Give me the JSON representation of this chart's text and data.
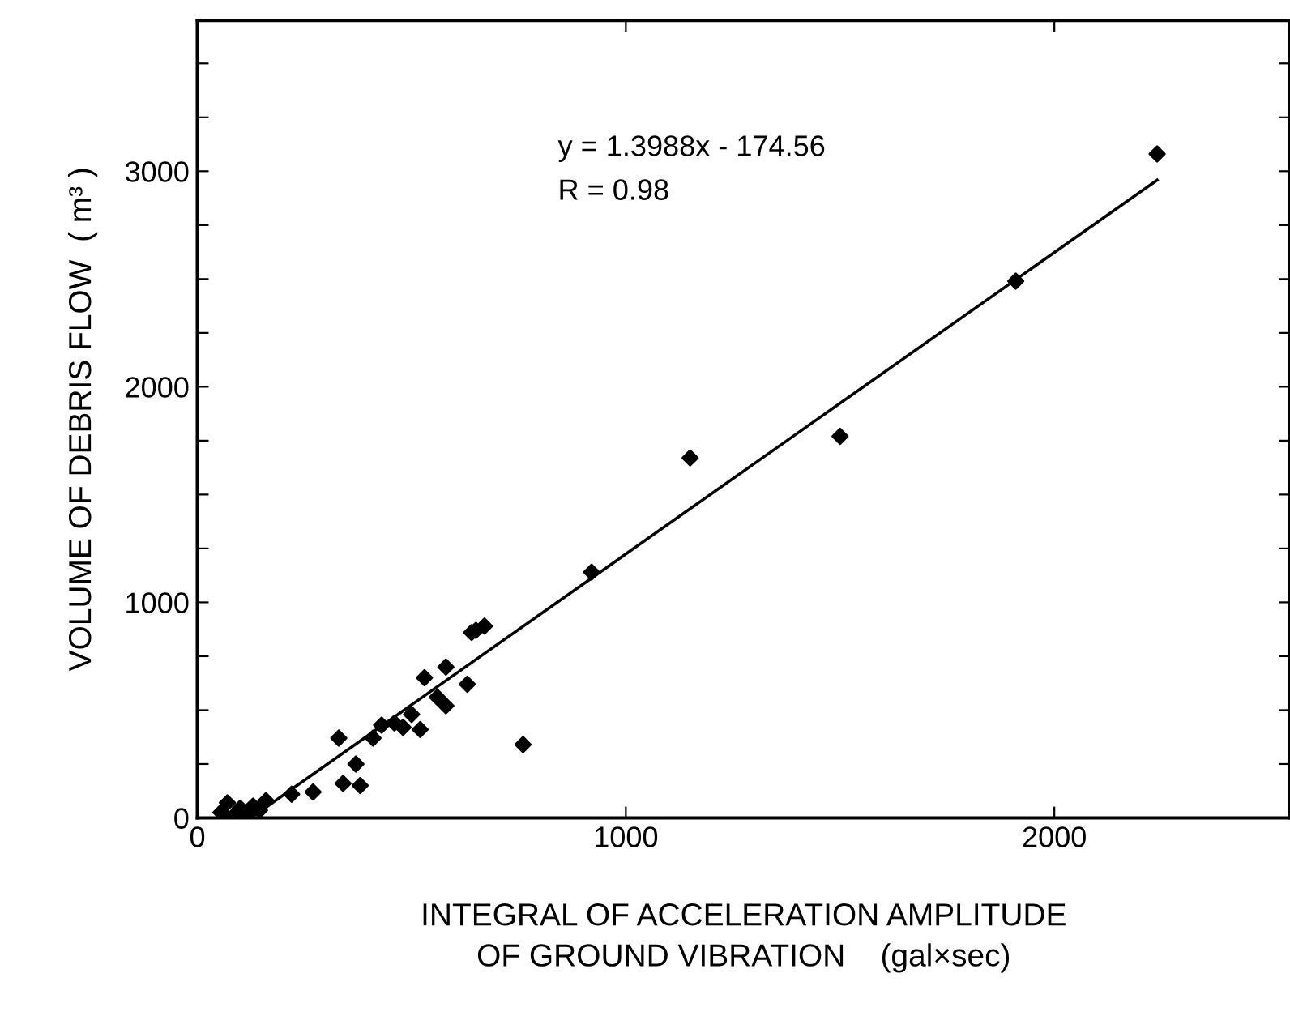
{
  "chart_data": {
    "type": "scatter",
    "xlabel": "INTEGRAL OF ACCELERATION AMPLITUDE\nOF GROUND VIBRATION    (gal×sec)",
    "ylabel": "VOLUME OF DEBRIS FLOW  ( m³ )",
    "annotations": [
      "y = 1.3988x - 174.56",
      "R = 0.98"
    ],
    "series": [
      {
        "color": "#000000",
        "marker": "diamond",
        "x": [
          55,
          70,
          85,
          100,
          115,
          130,
          145,
          160,
          220,
          270,
          330,
          340,
          370,
          380,
          410,
          430,
          460,
          480,
          500,
          520,
          530,
          560,
          580,
          580,
          630,
          640,
          650,
          670,
          760,
          920,
          1150,
          1500,
          1910,
          2240
        ],
        "values": [
          25,
          70,
          10,
          45,
          20,
          55,
          35,
          80,
          110,
          120,
          370,
          160,
          250,
          150,
          370,
          430,
          440,
          420,
          480,
          410,
          650,
          560,
          520,
          700,
          620,
          860,
          870,
          890,
          340,
          1140,
          1670,
          1770,
          2490,
          3080
        ]
      },
      {
        "type": "line",
        "color": "#000000",
        "marker": "none",
        "line_style": "solid",
        "x": [
          125,
          2240
        ],
        "values": [
          0,
          2959
        ]
      }
    ],
    "xlim": [
      0,
      2550
    ],
    "ylim": [
      0,
      3700
    ],
    "xticks": [
      0,
      1000,
      2000
    ],
    "yticks": [
      0,
      {
        "value": 250,
        "label": null
      },
      {
        "value": 500,
        "label": null
      },
      {
        "value": 750,
        "label": null
      },
      1000,
      {
        "value": 1250,
        "label": null
      },
      {
        "value": 1500,
        "label": null
      },
      {
        "value": 1750,
        "label": null
      },
      2000,
      {
        "value": 2250,
        "label": null
      },
      {
        "value": 2500,
        "label": null
      },
      {
        "value": 2750,
        "label": null
      },
      3000,
      {
        "value": 3250,
        "label": null
      },
      {
        "value": 3500,
        "label": null
      }
    ],
    "grid": false,
    "legend": false
  }
}
